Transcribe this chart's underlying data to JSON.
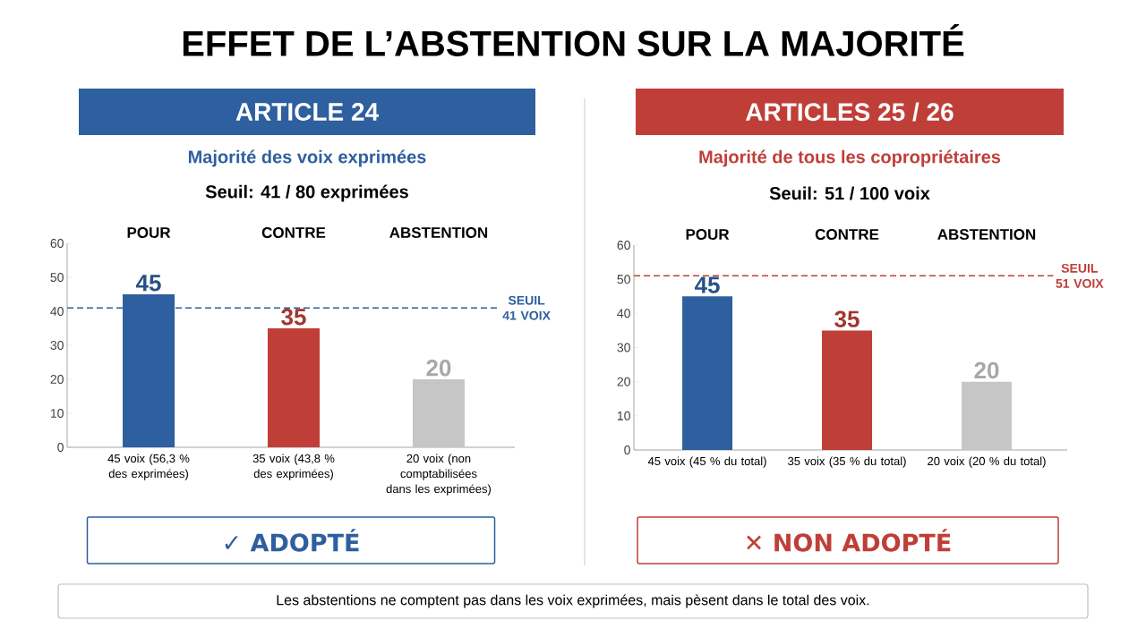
{
  "chart_data": [
    {
      "type": "other",
      "title": "EFFET DE L’ABSTENTION SUR LA MAJORITÉ",
      "annotations": [
        "Les abstentions ne comptent pas dans les voix exprimées, mais pèsent dans le total des voix."
      ]
    },
    {
      "type": "bar",
      "title": "ARTICLE 24",
      "subtitle": "Majorité des voix exprimées",
      "categories": [
        "POUR",
        "CONTRE",
        "ABSTENTION"
      ],
      "values": [
        45,
        35,
        20
      ],
      "colors": [
        "#2e5f9e",
        "#bf3f38",
        "#c6c6c6"
      ],
      "ylim": [
        0,
        60
      ],
      "yticks": [
        0,
        10,
        20,
        30,
        40,
        50,
        60
      ],
      "data_labels": true,
      "ref_lines": [
        {
          "axis": "y",
          "value": 41,
          "label": "SEUIL 41 VOIX",
          "color": "#2e5f9e",
          "line_style": "dashed"
        }
      ],
      "annotations": [
        "45 voix (56,3 % des exprimées)",
        "35 voix (43,8 % des exprimées)",
        "20 voix (non comptabilisées dans les exprimées)",
        "Seuil: 41 / 80 exprimées",
        "✓ ADOPTÉ"
      ]
    },
    {
      "type": "bar",
      "title": "ARTICLES 25 / 26",
      "subtitle": "Majorité de tous les copropriétaires",
      "categories": [
        "POUR",
        "CONTRE",
        "ABSTENTION"
      ],
      "values": [
        45,
        35,
        20
      ],
      "colors": [
        "#2e5f9e",
        "#bf3f38",
        "#c6c6c6"
      ],
      "ylim": [
        0,
        60
      ],
      "yticks": [
        0,
        10,
        20,
        30,
        40,
        50,
        60
      ],
      "data_labels": true,
      "ref_lines": [
        {
          "axis": "y",
          "value": 51,
          "label": "SEUIL 51 VOIX",
          "color": "#bf3f38",
          "line_style": "dashed"
        }
      ],
      "annotations": [
        "45 voix (45 % du total)",
        "35 voix (35 % du total)",
        "20 voix (20 % du total)",
        "Seuil: 51 / 100 voix",
        "✕ NON ADOPTÉ"
      ]
    }
  ]
}
